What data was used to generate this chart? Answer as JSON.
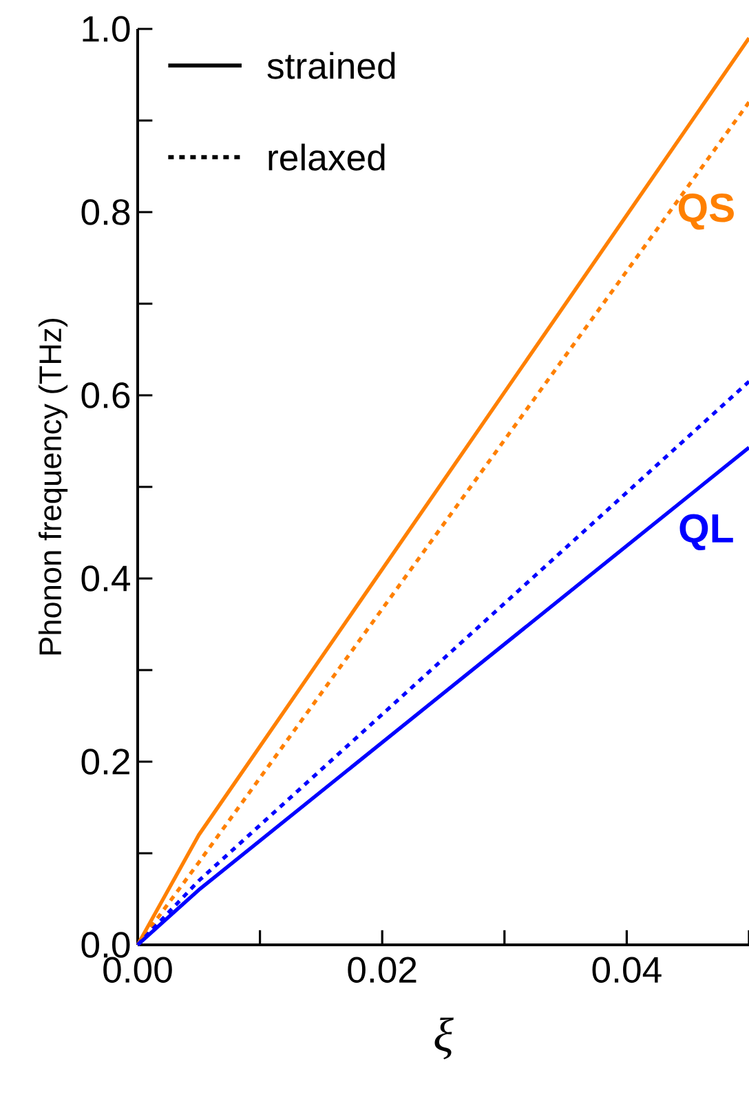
{
  "chart_data": {
    "type": "line",
    "xlabel": "ξ",
    "ylabel": "Phonon frequency (THz)",
    "xlim": [
      0,
      0.05
    ],
    "ylim": [
      0,
      1.0
    ],
    "xticks": [
      {
        "value": 0,
        "label": "0.00"
      },
      {
        "value": 0.01,
        "label": null
      },
      {
        "value": 0.02,
        "label": "0.02"
      },
      {
        "value": 0.03,
        "label": null
      },
      {
        "value": 0.04,
        "label": "0.04"
      },
      {
        "value": 0.05,
        "label": null
      }
    ],
    "yticks": [
      {
        "value": 0,
        "label": "0.0"
      },
      {
        "value": 0.1,
        "label": null
      },
      {
        "value": 0.2,
        "label": "0.2"
      },
      {
        "value": 0.3,
        "label": null
      },
      {
        "value": 0.4,
        "label": "0.4"
      },
      {
        "value": 0.5,
        "label": null
      },
      {
        "value": 0.6,
        "label": "0.6"
      },
      {
        "value": 0.7,
        "label": null
      },
      {
        "value": 0.8,
        "label": "0.8"
      },
      {
        "value": 0.9,
        "label": null
      },
      {
        "value": 1.0,
        "label": "1.0"
      }
    ],
    "marker": "none",
    "series": [
      {
        "color": "#ff8000",
        "line_style": "solid",
        "x": [
          0,
          0.005,
          0.05
        ],
        "values": [
          0,
          0.12,
          0.99
        ]
      },
      {
        "color": "#ff8000",
        "line_style": "dotted",
        "x": [
          0,
          0.005,
          0.05
        ],
        "values": [
          0,
          0.09,
          0.92
        ]
      },
      {
        "color": "#0000ff",
        "line_style": "dotted",
        "x": [
          0,
          0.005,
          0.05
        ],
        "values": [
          0,
          0.07,
          0.615
        ]
      },
      {
        "color": "#0000ff",
        "line_style": "solid",
        "x": [
          0,
          0.005,
          0.05
        ],
        "values": [
          0,
          0.06,
          0.543
        ]
      }
    ],
    "annotations": [
      "strained",
      "relaxed",
      "QS",
      "QL"
    ]
  }
}
